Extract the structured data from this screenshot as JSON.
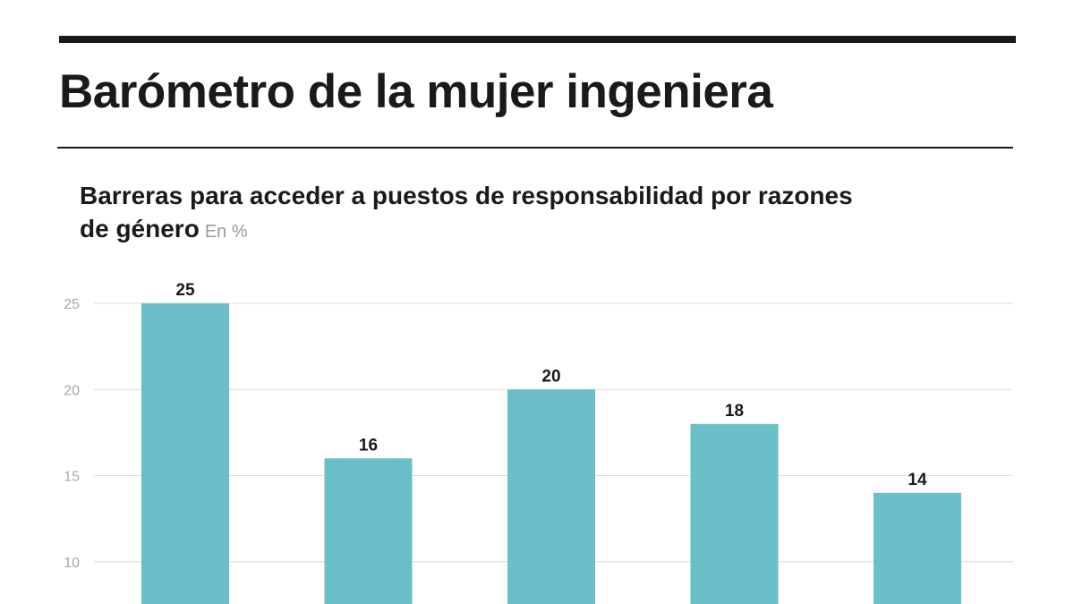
{
  "header": {
    "title": "Barómetro de la mujer ingeniera"
  },
  "chart_data": {
    "type": "bar",
    "title": "Barreras para acceder a puestos de responsabilidad por razones de género",
    "unit": "En %",
    "categories": [
      "",
      "",
      "",
      "",
      ""
    ],
    "values": [
      25,
      16,
      20,
      18,
      14
    ],
    "yticks": [
      10,
      15,
      20,
      25
    ],
    "ylim": [
      7,
      27
    ],
    "grid": true,
    "bar_color": "#6bbfc9",
    "xlabel": "",
    "ylabel": ""
  }
}
